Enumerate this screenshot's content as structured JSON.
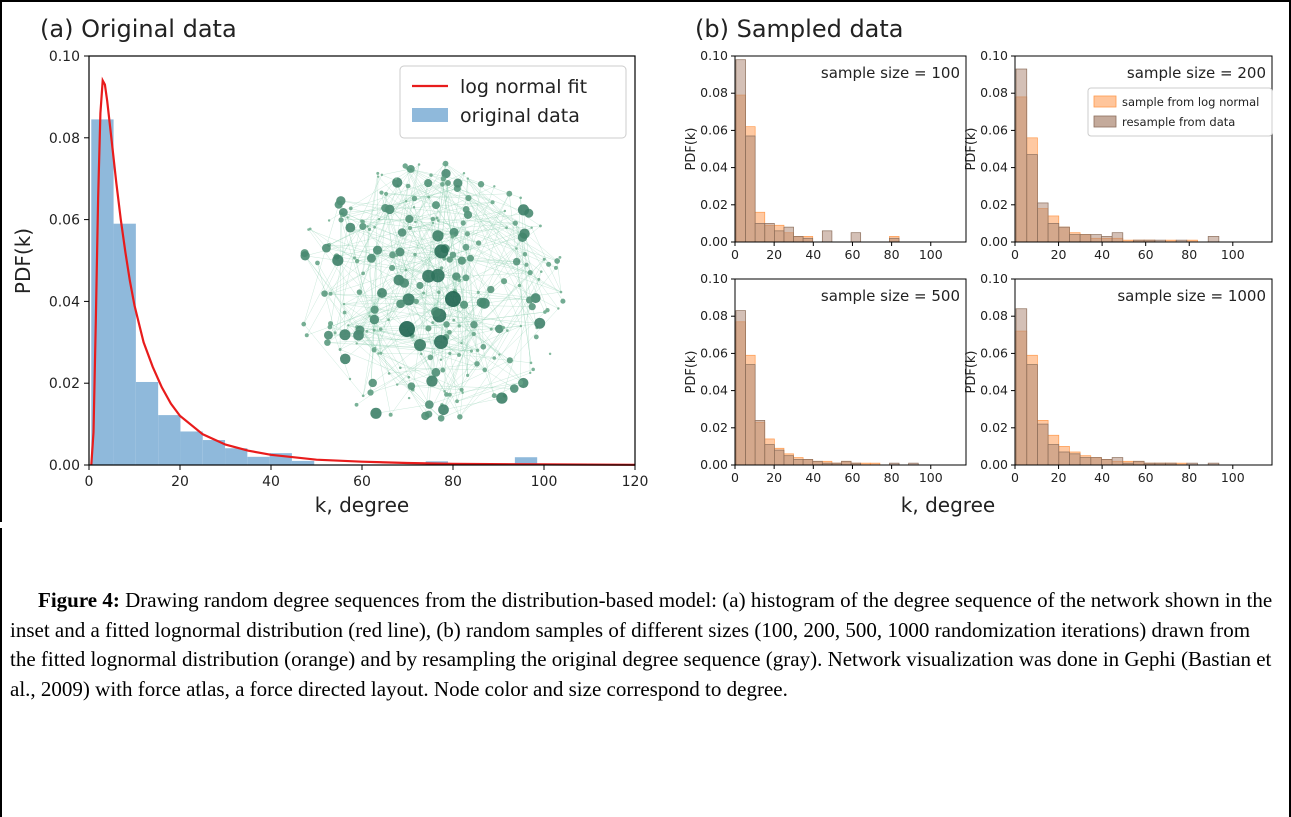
{
  "chart_data": [
    {
      "panel": "(a)",
      "type": "bar",
      "title": "(a) Original data",
      "xlabel": "k, degree",
      "ylabel": "PDF(k)",
      "xlim": [
        0,
        120
      ],
      "ylim": [
        0,
        0.1
      ],
      "xticks": [
        "0",
        "20",
        "40",
        "60",
        "80",
        "100",
        "120"
      ],
      "yticks": [
        "0.00",
        "0.02",
        "0.04",
        "0.06",
        "0.08",
        "0.10"
      ],
      "legend_position": "top-right",
      "series": [
        {
          "name": "original data",
          "kind": "histogram",
          "color": "#8fb9db",
          "bins": [
            {
              "x0": 0.5,
              "x1": 5.4,
              "y": 0.0845
            },
            {
              "x0": 5.4,
              "x1": 10.3,
              "y": 0.059
            },
            {
              "x0": 10.3,
              "x1": 15.2,
              "y": 0.0203
            },
            {
              "x0": 15.2,
              "x1": 20.1,
              "y": 0.0122
            },
            {
              "x0": 20.1,
              "x1": 25.0,
              "y": 0.0082
            },
            {
              "x0": 25.0,
              "x1": 29.9,
              "y": 0.0061
            },
            {
              "x0": 29.9,
              "x1": 34.8,
              "y": 0.0041
            },
            {
              "x0": 34.8,
              "x1": 39.7,
              "y": 0.002
            },
            {
              "x0": 39.7,
              "x1": 44.6,
              "y": 0.0029
            },
            {
              "x0": 44.6,
              "x1": 49.5,
              "y": 0.001
            },
            {
              "x0": 74.0,
              "x1": 78.9,
              "y": 0.0009
            },
            {
              "x0": 93.6,
              "x1": 98.5,
              "y": 0.0019
            }
          ]
        },
        {
          "name": "log normal fit",
          "kind": "line",
          "color": "#e81c1c",
          "x": [
            0.5,
            1,
            1.5,
            2,
            2.5,
            3,
            3.5,
            4,
            5,
            6,
            7,
            8,
            9,
            10,
            12,
            14,
            16,
            18,
            20,
            25,
            30,
            35,
            40,
            50,
            60,
            70,
            80,
            100,
            120
          ],
          "y": [
            0.0,
            0.008,
            0.035,
            0.065,
            0.086,
            0.094,
            0.093,
            0.089,
            0.079,
            0.069,
            0.06,
            0.052,
            0.045,
            0.039,
            0.03,
            0.024,
            0.019,
            0.015,
            0.012,
            0.0075,
            0.005,
            0.0035,
            0.0025,
            0.0013,
            0.0008,
            0.0005,
            0.0003,
            0.00015,
            5e-05
          ]
        }
      ]
    },
    {
      "panel": "(b)",
      "type": "bar",
      "title": "(b) Sampled data",
      "xlabel": "k, degree",
      "ylabel": "PDF(k)",
      "xlim": [
        0,
        120
      ],
      "ylim": [
        0,
        0.1
      ],
      "xticks": [
        "0",
        "20",
        "40",
        "60",
        "80",
        "100"
      ],
      "yticks": [
        "0.00",
        "0.02",
        "0.04",
        "0.06",
        "0.08",
        "0.10"
      ],
      "legend_position": "top-right",
      "legend": [
        "sample from log normal",
        "resample from data"
      ],
      "colors": {
        "sample_from_log_normal": "#ffb27a",
        "resample_from_data": "#b08d7a",
        "overlap": "#c87a46"
      },
      "bin_width": 4.9,
      "subplots": [
        {
          "label": "sample size = 100",
          "orange": [
            0.079,
            0.062,
            0.016,
            0.009,
            0.009,
            0.005,
            0.003,
            0.003,
            0,
            0,
            0,
            0,
            0,
            0,
            0,
            0,
            0.003,
            0,
            0,
            0
          ],
          "gray": [
            0.098,
            0.057,
            0.01,
            0.01,
            0.006,
            0.008,
            0.003,
            0.002,
            0,
            0.006,
            0,
            0,
            0.005,
            0,
            0,
            0,
            0.002,
            0,
            0,
            0
          ]
        },
        {
          "label": "sample size = 200",
          "orange": [
            0.078,
            0.056,
            0.018,
            0.014,
            0.008,
            0.005,
            0.004,
            0.002,
            0.002,
            0.002,
            0.001,
            0.001,
            0.001,
            0,
            0.001,
            0,
            0.001,
            0,
            0,
            0
          ],
          "gray": [
            0.093,
            0.047,
            0.021,
            0.01,
            0.008,
            0.004,
            0.004,
            0.004,
            0.003,
            0.005,
            0,
            0.001,
            0.001,
            0.001,
            0,
            0.001,
            0,
            0,
            0.003,
            0
          ]
        },
        {
          "label": "sample size = 500",
          "orange": [
            0.077,
            0.059,
            0.023,
            0.014,
            0.009,
            0.006,
            0.004,
            0.003,
            0.002,
            0.002,
            0.001,
            0.002,
            0.001,
            0.001,
            0.001,
            0,
            0,
            0,
            0,
            0
          ],
          "gray": [
            0.083,
            0.054,
            0.024,
            0.011,
            0.008,
            0.005,
            0.003,
            0.003,
            0.002,
            0.001,
            0.001,
            0.002,
            0.001,
            0,
            0,
            0,
            0.001,
            0,
            0.001,
            0
          ]
        },
        {
          "label": "sample size = 1000",
          "orange": [
            0.072,
            0.059,
            0.024,
            0.016,
            0.01,
            0.007,
            0.005,
            0.004,
            0.003,
            0.002,
            0.002,
            0.002,
            0.001,
            0.001,
            0.001,
            0.001,
            0,
            0,
            0,
            0
          ],
          "gray": [
            0.084,
            0.054,
            0.022,
            0.011,
            0.007,
            0.006,
            0.004,
            0.004,
            0.003,
            0.004,
            0.001,
            0.002,
            0.001,
            0.001,
            0.001,
            0,
            0.001,
            0,
            0.001,
            0
          ]
        }
      ]
    }
  ],
  "caption": {
    "label": "Figure 4:",
    "text": " Drawing random degree sequences from the distribution-based model: (a) histogram of the degree sequence of the network shown in the inset and a fitted lognormal distribution (red line), (b) random samples of different sizes (100, 200, 500, 1000 randomization iterations) drawn from the fitted lognormal distribution (orange) and by resampling the original degree sequence (gray). Network visualization was done in Gephi (Bastian et al., 2009) with force atlas, a force directed layout. Node color and size correspond to degree."
  },
  "inset": {
    "kind": "network",
    "node_color": "#2e8b57"
  }
}
